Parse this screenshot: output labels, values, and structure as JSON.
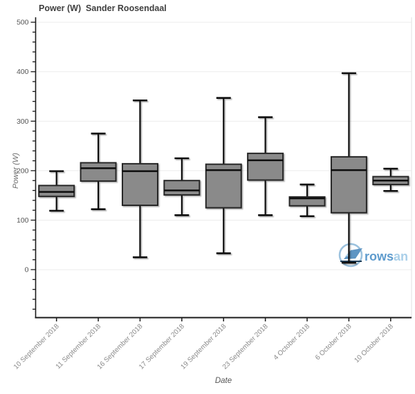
{
  "chart_data": {
    "type": "box",
    "title": "Power (W)  Sander Roosendaal",
    "xlabel": "Date",
    "ylabel": "Power (W)",
    "ylim": [
      -97,
      510
    ],
    "y_major_ticks": [
      0,
      100,
      200,
      300,
      400,
      500
    ],
    "y_minor_step": 20,
    "grid": "horizontal-major-only",
    "legend": "none",
    "categories": [
      "10 September 2018",
      "11 September 2018",
      "16 September 2018",
      "17 September 2018",
      "19 September 2018",
      "23 September 2018",
      "4 October 2018",
      "6 October 2018",
      "10 October 2018"
    ],
    "boxes": [
      {
        "low": 119,
        "q1": 148,
        "median": 157,
        "q3": 170,
        "high": 199
      },
      {
        "low": 122,
        "q1": 179,
        "median": 205,
        "q3": 216,
        "high": 275
      },
      {
        "low": 25,
        "q1": 130,
        "median": 199,
        "q3": 214,
        "high": 342
      },
      {
        "low": 110,
        "q1": 151,
        "median": 160,
        "q3": 180,
        "high": 225
      },
      {
        "low": 33,
        "q1": 125,
        "median": 201,
        "q3": 213,
        "high": 347
      },
      {
        "low": 110,
        "q1": 181,
        "median": 221,
        "q3": 235,
        "high": 308
      },
      {
        "low": 108,
        "q1": 129,
        "median": 144,
        "q3": 147,
        "high": 172
      },
      {
        "low": 14,
        "q1": 115,
        "median": 201,
        "q3": 228,
        "high": 397
      },
      {
        "low": 159,
        "q1": 172,
        "median": 180,
        "q3": 188,
        "high": 204
      }
    ]
  },
  "watermark": {
    "text_bold": "rows",
    "text_light": "an",
    "colors": {
      "circle": "#9cc2de",
      "boat": "#5f95c3",
      "boat_accent": "#a9cfe9",
      "keel": "#1d3c57",
      "text_bold": "#5e9bcd",
      "text_light": "#a9cfe9"
    }
  },
  "styles": {
    "box_fill": "#8a8a8a",
    "box_border": "#262626",
    "median_color": "#0d0d0d",
    "whisker_color": "#111111",
    "grid_color": "#ececec",
    "axis_color": "#1a1a1a",
    "y_tick_label_color": "#555555",
    "x_tick_label_color": "#8a8a8a",
    "title_color": "#404040",
    "right_border_color": "#e2e2e2"
  }
}
